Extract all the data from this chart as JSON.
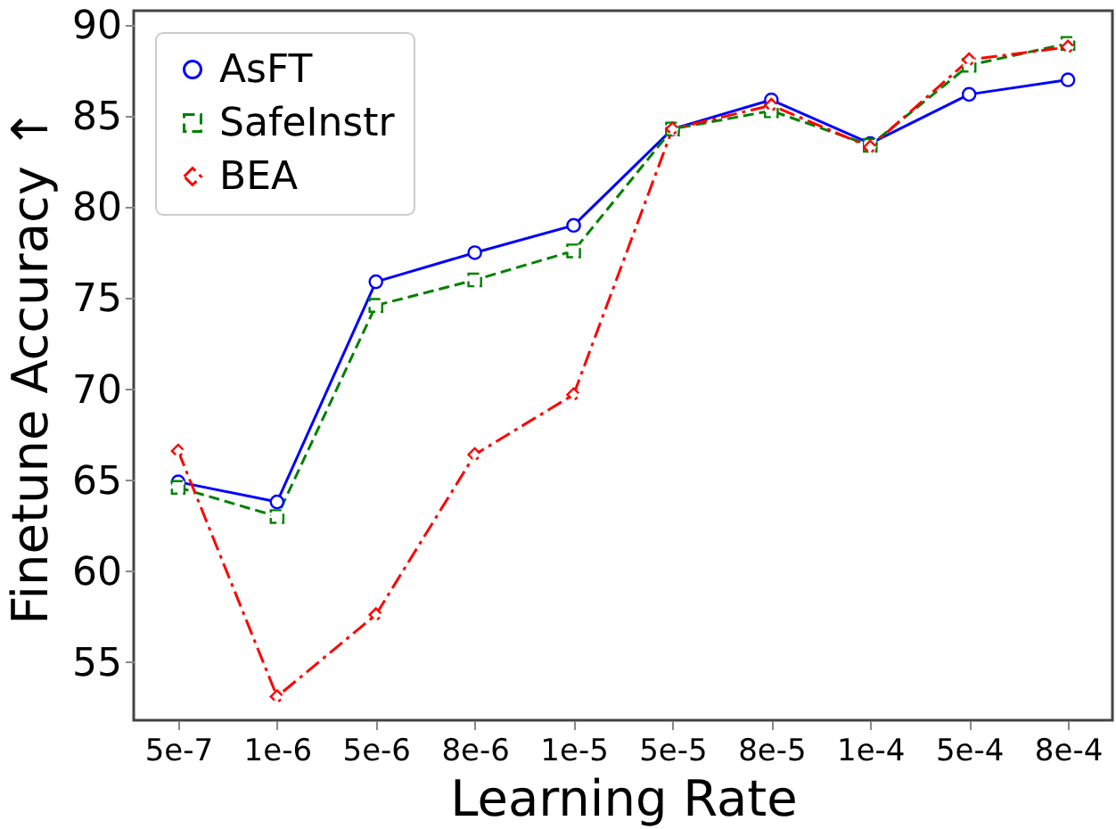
{
  "chart_data": {
    "type": "line",
    "xlabel": "Learning Rate",
    "ylabel": "Finetune Accuracy ↑",
    "categories": [
      "5e-7",
      "1e-6",
      "5e-6",
      "8e-6",
      "1e-5",
      "5e-5",
      "8e-5",
      "1e-4",
      "5e-4",
      "8e-4"
    ],
    "series": [
      {
        "name": "AsFT",
        "color": "#0000ff",
        "marker": "circle",
        "line_style": "solid",
        "values": [
          64.9,
          63.8,
          75.9,
          77.5,
          79.0,
          84.3,
          85.9,
          83.5,
          86.2,
          87.0
        ]
      },
      {
        "name": "SafeInstr",
        "color": "#008000",
        "marker": "square",
        "line_style": "dashed",
        "values": [
          64.6,
          63.0,
          74.6,
          76.0,
          77.6,
          84.3,
          85.3,
          83.4,
          87.8,
          89.0
        ]
      },
      {
        "name": "BEA",
        "color": "#ff0000",
        "marker": "diamond",
        "line_style": "dashdot",
        "values": [
          66.6,
          53.1,
          57.6,
          66.4,
          69.7,
          84.3,
          85.6,
          83.3,
          88.1,
          88.8
        ]
      }
    ],
    "ylim": [
      51.8,
      90.8
    ],
    "yticks": [
      55,
      60,
      65,
      70,
      75,
      80,
      85,
      90
    ],
    "grid": false,
    "legend": "top left"
  }
}
